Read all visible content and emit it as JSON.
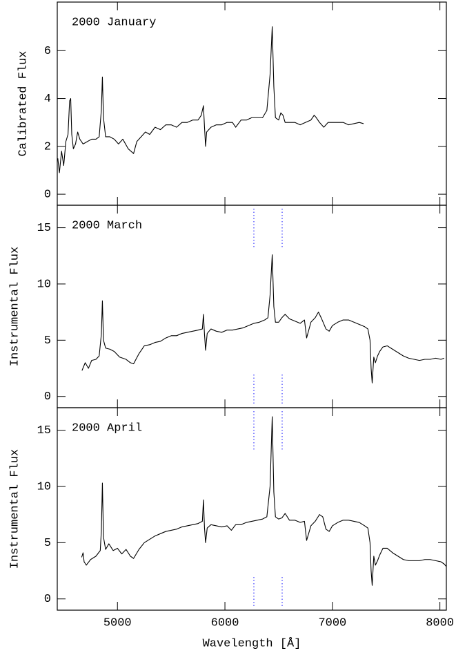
{
  "chart_data": [
    {
      "type": "line",
      "label": "2000 January",
      "ylabel": "Calibrated Flux",
      "xlim": [
        4440,
        8060
      ],
      "xticks": [
        5000,
        6000,
        7000,
        8000
      ],
      "ylim": [
        -0.46,
        8.03
      ],
      "yticks": [
        0,
        2,
        4,
        6
      ],
      "x": [
        4445,
        4460,
        4480,
        4500,
        4520,
        4540,
        4555,
        4565,
        4575,
        4590,
        4610,
        4630,
        4650,
        4680,
        4720,
        4760,
        4800,
        4830,
        4850,
        4860,
        4870,
        4890,
        4930,
        4970,
        5010,
        5050,
        5100,
        5150,
        5180,
        5220,
        5260,
        5300,
        5350,
        5400,
        5450,
        5500,
        5550,
        5600,
        5650,
        5700,
        5750,
        5780,
        5800,
        5810,
        5820,
        5830,
        5870,
        5920,
        5970,
        6020,
        6070,
        6100,
        6150,
        6200,
        6250,
        6300,
        6350,
        6390,
        6420,
        6440,
        6455,
        6470,
        6500,
        6520,
        6540,
        6560,
        6600,
        6650,
        6700,
        6750,
        6800,
        6830,
        6850,
        6880,
        6920,
        6960,
        7000,
        7050,
        7100,
        7150,
        7200,
        7250,
        7290
      ],
      "series": [
        {
          "color": "#000000",
          "values": [
            1.5,
            0.9,
            1.8,
            1.2,
            2.2,
            2.5,
            3.9,
            4.0,
            2.5,
            1.9,
            2.1,
            2.6,
            2.3,
            2.1,
            2.2,
            2.3,
            2.3,
            2.4,
            3.5,
            4.9,
            3.2,
            2.4,
            2.4,
            2.3,
            2.1,
            2.3,
            1.9,
            1.7,
            2.2,
            2.4,
            2.6,
            2.5,
            2.8,
            2.7,
            2.9,
            2.9,
            2.8,
            3.0,
            3.0,
            3.1,
            3.1,
            3.3,
            3.7,
            2.8,
            2.0,
            2.6,
            2.8,
            2.9,
            2.9,
            3.0,
            3.0,
            2.8,
            3.1,
            3.1,
            3.2,
            3.2,
            3.2,
            3.5,
            5.0,
            7.0,
            4.5,
            3.2,
            3.1,
            3.4,
            3.3,
            3.0,
            3.0,
            3.0,
            2.9,
            3.0,
            3.1,
            3.3,
            3.2,
            3.0,
            2.8,
            3.0,
            3.0,
            3.0,
            3.0,
            2.9,
            2.95,
            3.0,
            2.95
          ]
        }
      ]
    },
    {
      "type": "line",
      "label": "2000 March",
      "ylabel": "Instrumental Flux",
      "xlim": [
        4440,
        8060
      ],
      "xticks": [
        5000,
        6000,
        7000,
        8000
      ],
      "ylim": [
        -1,
        17
      ],
      "yticks": [
        0,
        5,
        10,
        15
      ],
      "x": [
        4670,
        4700,
        4730,
        4760,
        4800,
        4830,
        4850,
        4860,
        4870,
        4890,
        4930,
        4970,
        5020,
        5080,
        5120,
        5150,
        5200,
        5250,
        5300,
        5350,
        5400,
        5450,
        5500,
        5550,
        5600,
        5650,
        5700,
        5750,
        5790,
        5800,
        5810,
        5820,
        5835,
        5870,
        5920,
        5970,
        6020,
        6070,
        6120,
        6170,
        6220,
        6270,
        6320,
        6370,
        6400,
        6420,
        6440,
        6455,
        6470,
        6500,
        6530,
        6560,
        6600,
        6650,
        6700,
        6740,
        6760,
        6800,
        6840,
        6870,
        6900,
        6940,
        6970,
        7000,
        7050,
        7100,
        7150,
        7200,
        7250,
        7300,
        7330,
        7350,
        7360,
        7370,
        7385,
        7400,
        7420,
        7440,
        7470,
        7510,
        7560,
        7610,
        7660,
        7710,
        7760,
        7810,
        7860,
        7910,
        7960,
        8010,
        8040
      ],
      "series": [
        {
          "color": "#000000",
          "values": [
            2.3,
            3.0,
            2.5,
            3.2,
            3.3,
            3.6,
            5.5,
            8.5,
            5.0,
            4.3,
            4.2,
            4.0,
            3.5,
            3.3,
            3.0,
            2.9,
            3.8,
            4.5,
            4.6,
            4.8,
            4.9,
            5.2,
            5.4,
            5.4,
            5.6,
            5.7,
            5.8,
            5.9,
            6.0,
            7.3,
            5.5,
            4.1,
            5.6,
            6.0,
            5.8,
            5.7,
            5.9,
            5.9,
            6.0,
            6.1,
            6.3,
            6.5,
            6.6,
            6.8,
            7.0,
            9.0,
            12.6,
            8.0,
            6.6,
            6.6,
            7.0,
            7.3,
            6.9,
            6.7,
            6.5,
            6.8,
            5.2,
            6.6,
            7.0,
            7.5,
            6.9,
            6.0,
            5.8,
            6.3,
            6.6,
            6.8,
            6.8,
            6.6,
            6.4,
            6.2,
            6.0,
            5.0,
            2.5,
            1.2,
            3.5,
            3.0,
            3.6,
            4.0,
            4.4,
            4.5,
            4.2,
            3.9,
            3.6,
            3.4,
            3.3,
            3.2,
            3.3,
            3.3,
            3.4,
            3.3,
            3.4
          ]
        }
      ]
    },
    {
      "type": "line",
      "label": "2000 April",
      "ylabel": "Instrumental Flux",
      "xlabel": "Wavelength [Å]",
      "xlim": [
        4440,
        8060
      ],
      "xticks": [
        5000,
        6000,
        7000,
        8000
      ],
      "ylim": [
        -1,
        17
      ],
      "yticks": [
        0,
        5,
        10,
        15
      ],
      "x": [
        4667,
        4680,
        4690,
        4710,
        4750,
        4800,
        4840,
        4850,
        4860,
        4870,
        4890,
        4920,
        4960,
        5000,
        5040,
        5080,
        5120,
        5150,
        5200,
        5250,
        5300,
        5350,
        5400,
        5450,
        5500,
        5550,
        5600,
        5650,
        5700,
        5750,
        5790,
        5800,
        5810,
        5820,
        5835,
        5870,
        5920,
        5970,
        6020,
        6060,
        6100,
        6150,
        6200,
        6250,
        6300,
        6350,
        6390,
        6420,
        6440,
        6455,
        6470,
        6500,
        6530,
        6560,
        6600,
        6650,
        6700,
        6740,
        6760,
        6800,
        6840,
        6880,
        6910,
        6940,
        6970,
        7000,
        7050,
        7100,
        7150,
        7200,
        7250,
        7300,
        7330,
        7350,
        7360,
        7370,
        7385,
        7400,
        7420,
        7440,
        7470,
        7510,
        7560,
        7610,
        7660,
        7710,
        7760,
        7810,
        7860,
        7910,
        7960,
        8010,
        8040,
        8058
      ],
      "series": [
        {
          "color": "#000000",
          "values": [
            3.7,
            4.1,
            3.3,
            3.0,
            3.5,
            3.8,
            4.3,
            6.0,
            10.3,
            5.5,
            4.4,
            4.9,
            4.3,
            4.5,
            4.0,
            4.4,
            3.8,
            3.6,
            4.4,
            5.0,
            5.3,
            5.6,
            5.8,
            6.0,
            6.1,
            6.2,
            6.4,
            6.5,
            6.6,
            6.7,
            6.9,
            8.8,
            6.3,
            5.0,
            6.3,
            6.6,
            6.5,
            6.4,
            6.5,
            6.1,
            6.6,
            6.6,
            6.8,
            6.9,
            7.0,
            7.1,
            7.3,
            10.0,
            16.2,
            9.5,
            7.3,
            7.1,
            7.2,
            7.6,
            7.0,
            7.0,
            6.8,
            6.9,
            5.2,
            6.5,
            6.9,
            7.5,
            7.3,
            6.2,
            6.0,
            6.5,
            6.8,
            7.0,
            7.0,
            6.9,
            6.8,
            6.5,
            6.3,
            5.0,
            2.5,
            1.2,
            3.8,
            3.0,
            3.4,
            3.9,
            4.5,
            4.5,
            4.1,
            3.8,
            3.5,
            3.4,
            3.4,
            3.4,
            3.5,
            3.5,
            3.4,
            3.3,
            3.1,
            2.9
          ]
        }
      ]
    }
  ]
}
